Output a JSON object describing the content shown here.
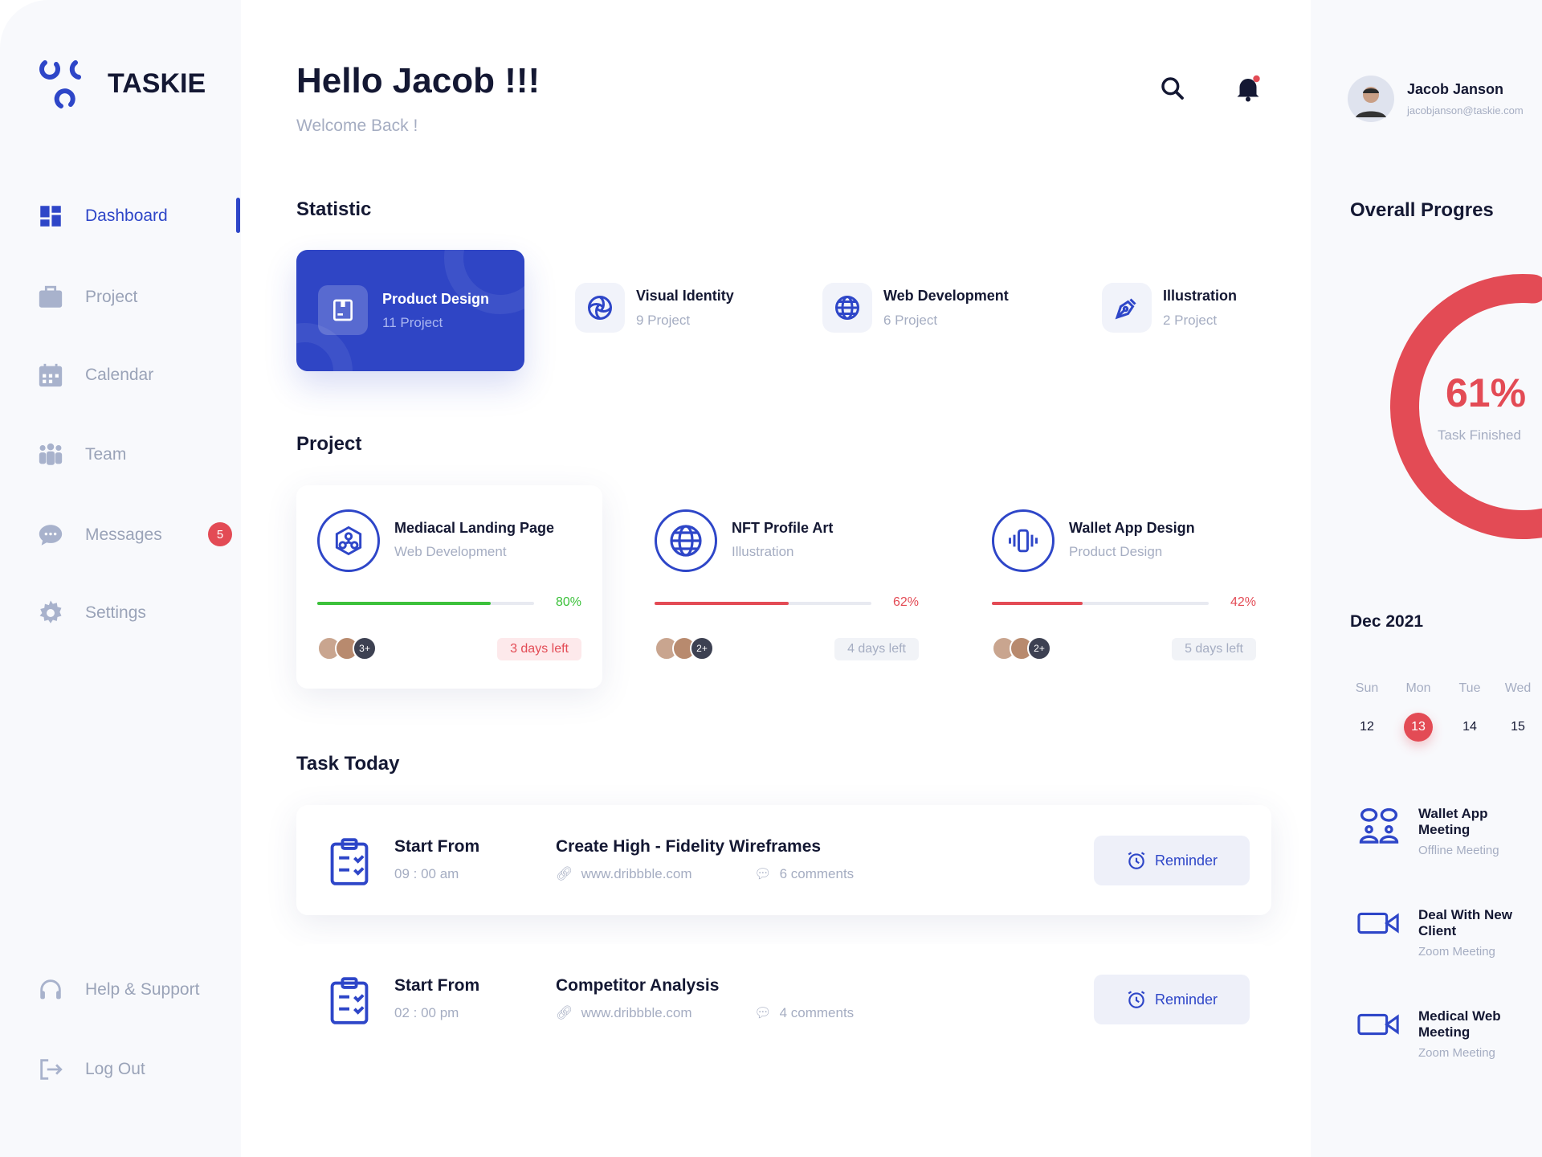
{
  "brand": {
    "name": "TASKIE",
    "accent": "#2e46c8",
    "danger": "#e34b55"
  },
  "sidebar": {
    "items": [
      {
        "label": "Dashboard",
        "icon": "grid-icon",
        "active": true
      },
      {
        "label": "Project",
        "icon": "briefcase-icon"
      },
      {
        "label": "Calendar",
        "icon": "calendar-icon"
      },
      {
        "label": "Team",
        "icon": "team-icon"
      },
      {
        "label": "Messages",
        "icon": "chat-icon",
        "badge": "5"
      },
      {
        "label": "Settings",
        "icon": "gear-icon"
      }
    ],
    "bottom": [
      {
        "label": "Help & Support",
        "icon": "headset-icon"
      },
      {
        "label": "Log Out",
        "icon": "logout-icon"
      }
    ]
  },
  "header": {
    "title": "Hello Jacob !!!",
    "subtitle": "Welcome Back !"
  },
  "user": {
    "name": "Jacob Janson",
    "email": "jacobjanson@taskie.com"
  },
  "statistic": {
    "title": "Statistic",
    "items": [
      {
        "title": "Product Design",
        "sub": "11 Project",
        "selected": true
      },
      {
        "title": "Visual Identity",
        "sub": "9 Project"
      },
      {
        "title": "Web Development",
        "sub": "6 Project"
      },
      {
        "title": "Illustration",
        "sub": "2 Project"
      }
    ]
  },
  "project": {
    "title": "Project",
    "items": [
      {
        "title": "Mediacal Landing Page",
        "category": "Web Development",
        "progress": 80,
        "progress_label": "80%",
        "color": "#3cc13b",
        "extra": "3+",
        "due": "3 days left"
      },
      {
        "title": "NFT Profile Art",
        "category": "Illustration",
        "progress": 62,
        "progress_label": "62%",
        "color": "#e34b55",
        "extra": "2+",
        "due": "4 days left"
      },
      {
        "title": "Wallet App Design",
        "category": "Product Design",
        "progress": 42,
        "progress_label": "42%",
        "color": "#e34b55",
        "extra": "2+",
        "due": "5 days left"
      }
    ]
  },
  "tasks": {
    "title": "Task Today",
    "items": [
      {
        "start_label": "Start From",
        "time": "09 : 00 am",
        "name": "Create High - Fidelity Wireframes",
        "link": "www.dribbble.com",
        "comments": "6 comments",
        "button": "Reminder"
      },
      {
        "start_label": "Start From",
        "time": "02 : 00 pm",
        "name": "Competitor Analysis",
        "link": "www.dribbble.com",
        "comments": "4 comments",
        "button": "Reminder"
      }
    ]
  },
  "progress": {
    "title": "Overall Progres",
    "value": 61,
    "label": "61%",
    "caption": "Task Finished"
  },
  "calendar": {
    "month": "Dec 2021",
    "days": [
      {
        "d": "Sun",
        "n": "12"
      },
      {
        "d": "Mon",
        "n": "13",
        "selected": true
      },
      {
        "d": "Tue",
        "n": "14"
      },
      {
        "d": "Wed",
        "n": "15"
      }
    ]
  },
  "meetings": [
    {
      "title": "Wallet App Meeting",
      "sub": "Offline Meeting",
      "icon": "people-meeting-icon"
    },
    {
      "title": "Deal With New Client",
      "sub": "Zoom Meeting",
      "icon": "video-camera-icon"
    },
    {
      "title": "Medical Web Meeting",
      "sub": "Zoom Meeting",
      "icon": "video-camera-icon"
    }
  ]
}
